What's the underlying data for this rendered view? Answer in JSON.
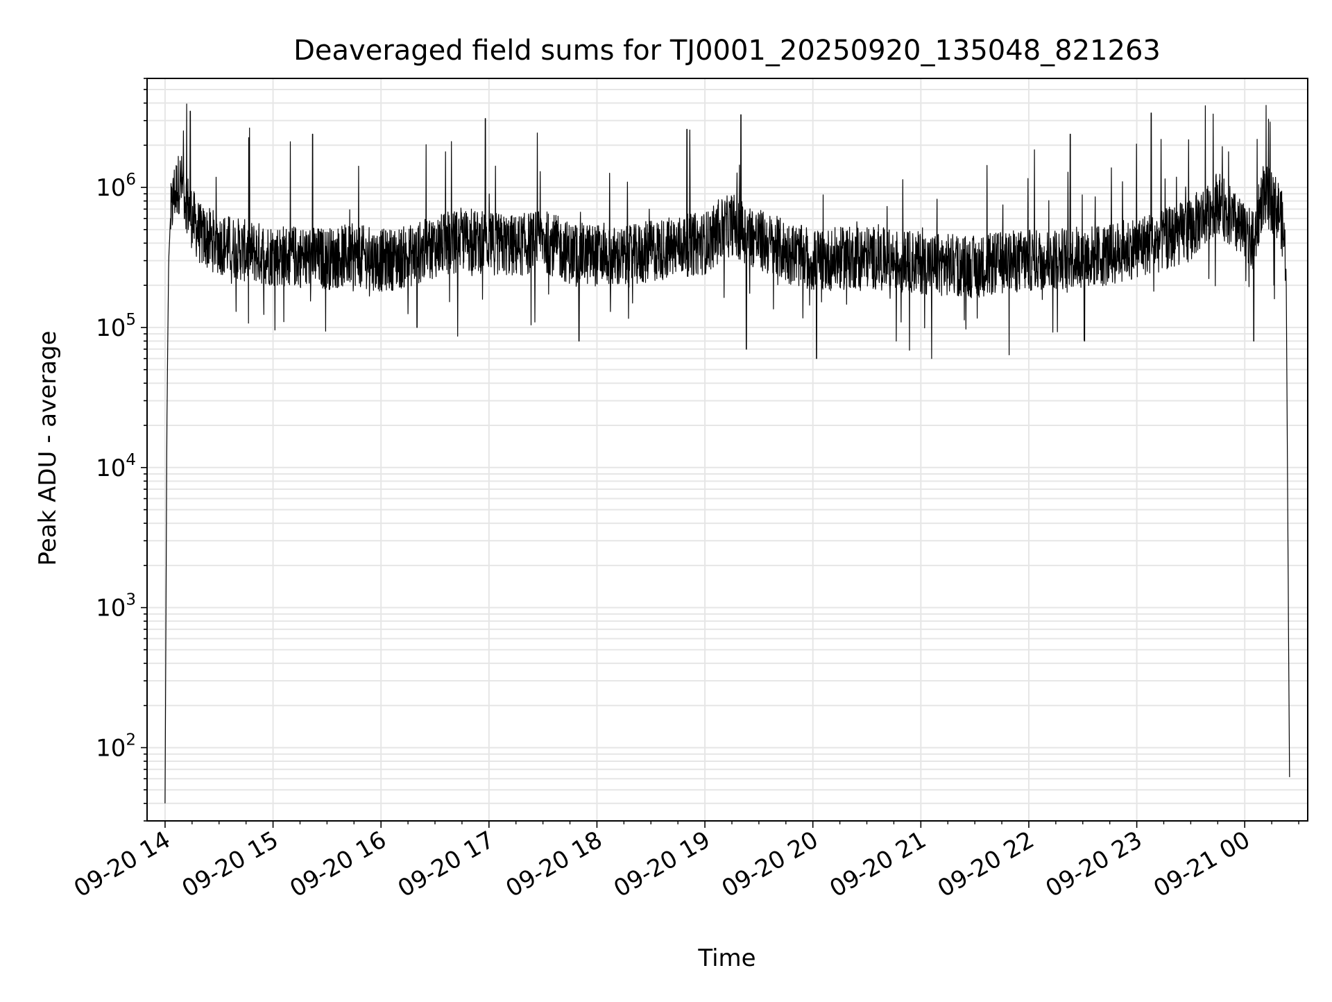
{
  "chart_data": {
    "type": "line",
    "title": "Deaveraged field sums for TJ0001_20250920_135048_821263",
    "xlabel": "Time",
    "ylabel": "Peak ADU - average",
    "yscale": "log",
    "grid": true,
    "line_color": "#000000",
    "grid_color": "#e6e6e6",
    "xlim": [
      "2025-09-20 13:50",
      "2025-09-21 00:35"
    ],
    "ylim": [
      30,
      6000000
    ],
    "x_ticks": [
      {
        "value": "2025-09-20 14:00",
        "label": "09-20 14"
      },
      {
        "value": "2025-09-20 15:00",
        "label": "09-20 15"
      },
      {
        "value": "2025-09-20 16:00",
        "label": "09-20 16"
      },
      {
        "value": "2025-09-20 17:00",
        "label": "09-20 17"
      },
      {
        "value": "2025-09-20 18:00",
        "label": "09-20 18"
      },
      {
        "value": "2025-09-20 19:00",
        "label": "09-20 19"
      },
      {
        "value": "2025-09-20 20:00",
        "label": "09-20 20"
      },
      {
        "value": "2025-09-20 21:00",
        "label": "09-20 21"
      },
      {
        "value": "2025-09-20 22:00",
        "label": "09-20 22"
      },
      {
        "value": "2025-09-20 23:00",
        "label": "09-20 23"
      },
      {
        "value": "2025-09-21 00:00",
        "label": "09-21 00"
      }
    ],
    "y_ticks": [
      {
        "value": 100,
        "base": "10",
        "exp": "2"
      },
      {
        "value": 1000,
        "base": "10",
        "exp": "3"
      },
      {
        "value": 10000,
        "base": "10",
        "exp": "4"
      },
      {
        "value": 100000,
        "base": "10",
        "exp": "5"
      },
      {
        "value": 1000000,
        "base": "10",
        "exp": "6"
      }
    ],
    "series": [
      {
        "x": [
          "2025-09-20 14:00",
          "2025-09-20 14:01",
          "2025-09-20 14:02",
          "2025-09-20 14:03",
          "2025-09-20 14:05",
          "2025-09-20 14:08",
          "2025-09-20 14:10",
          "2025-09-20 14:12",
          "2025-09-20 14:15",
          "2025-09-20 14:20",
          "2025-09-20 14:30",
          "2025-09-20 14:45",
          "2025-09-20 15:00",
          "2025-09-20 15:15",
          "2025-09-20 15:30",
          "2025-09-20 15:45",
          "2025-09-20 16:00",
          "2025-09-20 16:15",
          "2025-09-20 16:30",
          "2025-09-20 16:45",
          "2025-09-20 17:00",
          "2025-09-20 17:15",
          "2025-09-20 17:30",
          "2025-09-20 17:45",
          "2025-09-20 18:00",
          "2025-09-20 18:15",
          "2025-09-20 18:30",
          "2025-09-20 18:45",
          "2025-09-20 19:00",
          "2025-09-20 19:15",
          "2025-09-20 19:30",
          "2025-09-20 19:45",
          "2025-09-20 20:00",
          "2025-09-20 20:15",
          "2025-09-20 20:30",
          "2025-09-20 20:45",
          "2025-09-20 21:00",
          "2025-09-20 21:15",
          "2025-09-20 21:30",
          "2025-09-20 21:45",
          "2025-09-20 22:00",
          "2025-09-20 22:15",
          "2025-09-20 22:30",
          "2025-09-20 22:45",
          "2025-09-20 23:00",
          "2025-09-20 23:15",
          "2025-09-20 23:30",
          "2025-09-20 23:45",
          "2025-09-21 00:00",
          "2025-09-21 00:05",
          "2025-09-21 00:10",
          "2025-09-21 00:15",
          "2025-09-21 00:20",
          "2025-09-21 00:23",
          "2025-09-21 00:24",
          "2025-09-21 00:25"
        ],
        "y": [
          40,
          20000,
          300000,
          600000,
          900000,
          1100000,
          1000000,
          800000,
          600000,
          450000,
          400000,
          350000,
          330000,
          320000,
          310000,
          330000,
          300000,
          320000,
          380000,
          420000,
          400000,
          380000,
          420000,
          340000,
          330000,
          310000,
          350000,
          380000,
          400000,
          550000,
          420000,
          350000,
          300000,
          310000,
          320000,
          300000,
          290000,
          280000,
          270000,
          290000,
          300000,
          310000,
          320000,
          330000,
          380000,
          420000,
          500000,
          800000,
          450000,
          400000,
          900000,
          800000,
          650000,
          300000,
          3000,
          40
        ],
        "peaks": [
          {
            "x": "2025-09-20 14:14",
            "y": 3500000
          },
          {
            "x": "2025-09-20 15:22",
            "y": 2400000
          },
          {
            "x": "2025-09-20 16:58",
            "y": 3100000
          },
          {
            "x": "2025-09-20 18:50",
            "y": 2600000
          },
          {
            "x": "2025-09-20 19:20",
            "y": 3300000
          },
          {
            "x": "2025-09-20 22:23",
            "y": 2400000
          },
          {
            "x": "2025-09-20 23:08",
            "y": 3400000
          }
        ],
        "dips": [
          {
            "x": "2025-09-20 15:06",
            "y": 110000
          },
          {
            "x": "2025-09-20 16:20",
            "y": 100000
          },
          {
            "x": "2025-09-20 17:50",
            "y": 80000
          },
          {
            "x": "2025-09-20 19:23",
            "y": 70000
          },
          {
            "x": "2025-09-20 20:02",
            "y": 60000
          },
          {
            "x": "2025-09-20 21:06",
            "y": 60000
          },
          {
            "x": "2025-09-20 22:31",
            "y": 80000
          },
          {
            "x": "2025-09-21 00:05",
            "y": 80000
          }
        ]
      }
    ]
  }
}
